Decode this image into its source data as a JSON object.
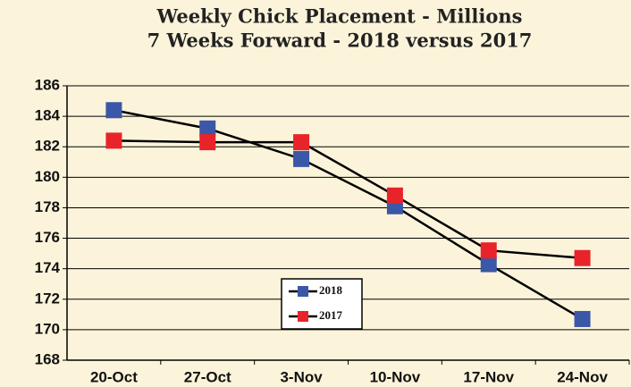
{
  "chart_data": {
    "type": "line",
    "title": "Weekly Chick Placement - Millions",
    "subtitle": "7 Weeks Forward - 2018 versus 2017",
    "categories": [
      "20-Oct",
      "27-Oct",
      "3-Nov",
      "10-Nov",
      "17-Nov",
      "24-Nov"
    ],
    "series": [
      {
        "name": "2018",
        "color": "#3a57a8",
        "values": [
          184.4,
          183.2,
          181.2,
          178.1,
          174.3,
          170.7
        ]
      },
      {
        "name": "2017",
        "color": "#e8242a",
        "values": [
          182.4,
          182.3,
          182.3,
          178.8,
          175.2,
          174.7
        ]
      }
    ],
    "ylim": [
      168,
      186
    ],
    "yticks": [
      168,
      170,
      172,
      174,
      176,
      178,
      180,
      182,
      184,
      186
    ],
    "grid": true
  }
}
